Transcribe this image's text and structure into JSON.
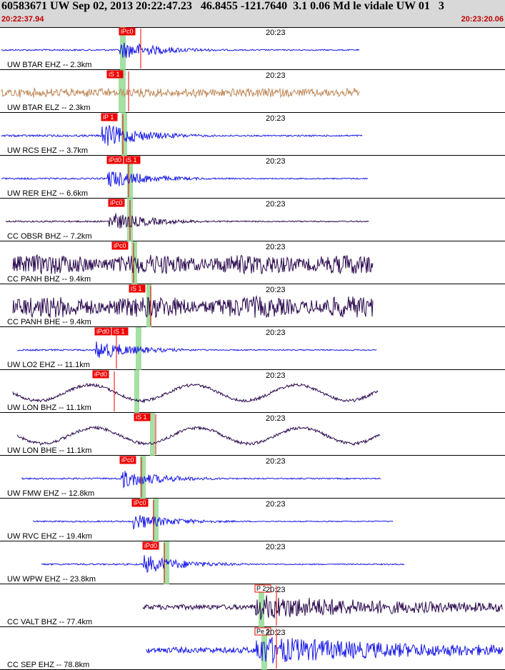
{
  "header": {
    "title": "60583671 UW Sep 02, 2013 20:22:47.23   46.8455 -121.7640  3.1 0.06 Md le vidale UW 01   3",
    "time_start": "20:22:37.94",
    "time_end": "20:23:20.06"
  },
  "colors": {
    "header_bg": "#d8d8d8",
    "timestamp": "#c00000",
    "ehz": "#1a1ae6",
    "elz": "#c08a5a",
    "broadband": "#2b0a4e",
    "pick": "#ee0000",
    "window": "#8fd88f"
  },
  "traces": [
    {
      "label": "UW BTAR EHZ -- 2.3km",
      "time_mark": "20:23",
      "picks": [
        "iPc0"
      ],
      "color": "ehz"
    },
    {
      "label": "UW BTAR ELZ -- 2.3km",
      "time_mark": "20:23",
      "picks": [
        "iS 1"
      ],
      "color": "elz"
    },
    {
      "label": "UW RCS EHZ -- 3.7km",
      "time_mark": "20:23",
      "picks": [
        "iP 1"
      ],
      "color": "ehz"
    },
    {
      "label": "UW RER EHZ -- 6.6km",
      "time_mark": "20:23",
      "picks": [
        "iPd0",
        "iS 1"
      ],
      "color": "ehz"
    },
    {
      "label": "CC OBSR BHZ -- 7.2km",
      "time_mark": "20:23",
      "picks": [
        "iPc0"
      ],
      "color": "broadband"
    },
    {
      "label": "CC PANH BHZ -- 9.4km",
      "time_mark": "20:23",
      "picks": [
        "iPc0"
      ],
      "color": "broadband"
    },
    {
      "label": "CC PANH BHE -- 9.4km",
      "time_mark": "20:23",
      "picks": [
        "iS 1"
      ],
      "color": "broadband"
    },
    {
      "label": "UW LO2 EHZ -- 11.1km",
      "time_mark": "20:23",
      "picks": [
        "iPd0",
        "iS 1"
      ],
      "color": "ehz"
    },
    {
      "label": "UW LON BHZ -- 11.1km",
      "time_mark": "20:23",
      "picks": [
        "iPd0"
      ],
      "color": "broadband"
    },
    {
      "label": "UW LON BHE -- 11.1km",
      "time_mark": "20:23",
      "picks": [
        "iS 1"
      ],
      "color": "broadband"
    },
    {
      "label": "UW FMW EHZ -- 12.8km",
      "time_mark": "20:23",
      "picks": [
        "iPc0"
      ],
      "color": "ehz"
    },
    {
      "label": "UW RVC EHZ -- 19.4km",
      "time_mark": "20:23",
      "picks": [
        "iPc0"
      ],
      "color": "ehz"
    },
    {
      "label": "UW WPW EHZ -- 23.8km",
      "time_mark": "20:23",
      "picks": [
        "iPd0"
      ],
      "color": "ehz"
    },
    {
      "label": "CC VALT BHZ -- 77.4km",
      "time_mark": "20:23",
      "picks": [
        "P 2"
      ],
      "color": "broadband"
    },
    {
      "label": "CC SEP EHZ -- 78.8km",
      "time_mark": "20:23",
      "picks": [
        "Pe 2"
      ],
      "color": "ehz"
    }
  ]
}
